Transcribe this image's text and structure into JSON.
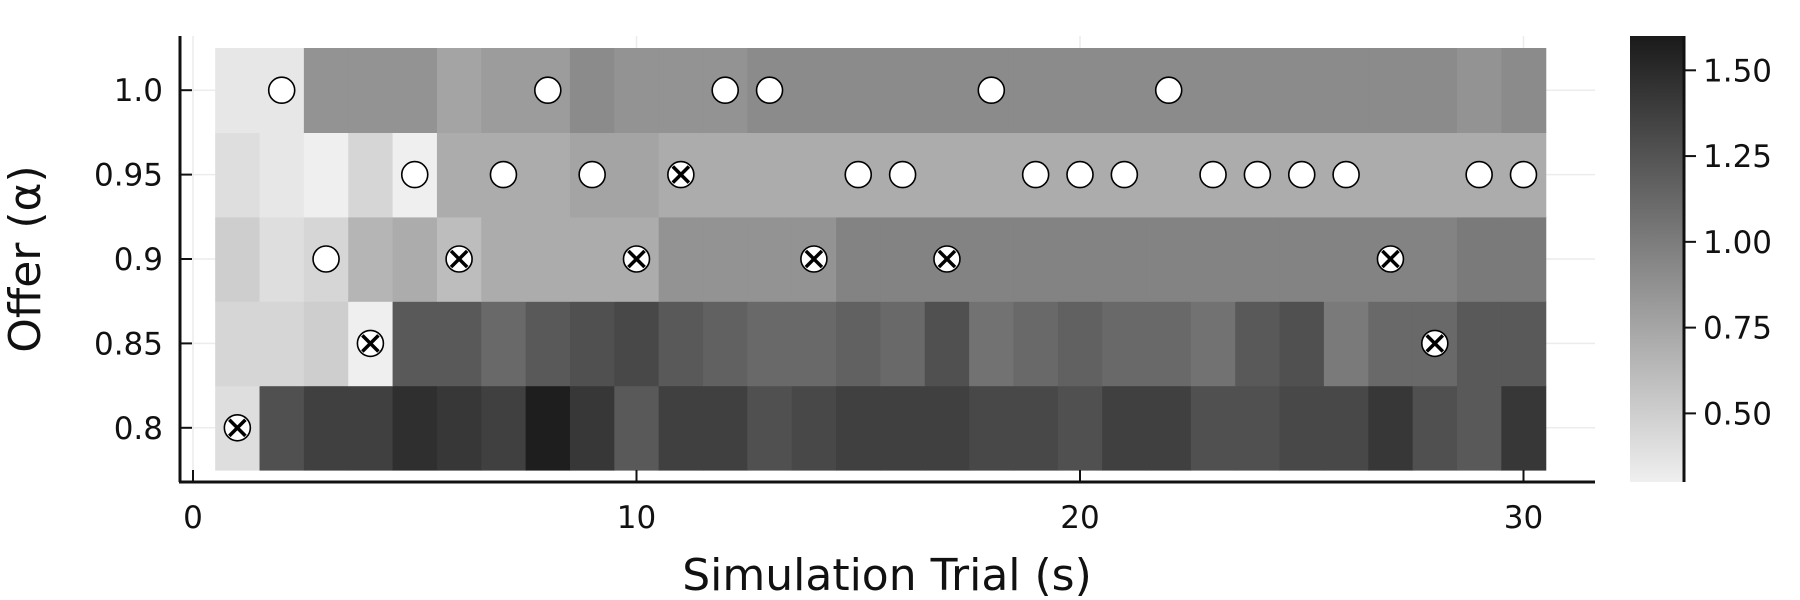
{
  "chart_data": {
    "type": "heatmap",
    "title": "",
    "xlabel": "Simulation Trial (s)",
    "ylabel": "Offer (α)",
    "x": [
      1,
      2,
      3,
      4,
      5,
      6,
      7,
      8,
      9,
      10,
      11,
      12,
      13,
      14,
      15,
      16,
      17,
      18,
      19,
      20,
      21,
      22,
      23,
      24,
      25,
      26,
      27,
      28,
      29,
      30
    ],
    "y_categories": [
      "0.8",
      "0.85",
      "0.9",
      "0.95",
      "1.0"
    ],
    "xlim": [
      0,
      31.4
    ],
    "x_ticks": [
      0,
      10,
      20,
      30
    ],
    "grid": true,
    "colormap": "grays (light = low, dark = high)",
    "color_range": [
      0.3,
      1.6
    ],
    "colorbar_ticks": [
      "0.50",
      "0.75",
      "1.00",
      "1.25",
      "1.50"
    ],
    "z": {
      "1.0": [
        0.35,
        0.35,
        0.85,
        0.85,
        0.85,
        0.75,
        0.8,
        0.8,
        0.9,
        0.85,
        0.85,
        0.85,
        0.9,
        0.9,
        0.9,
        0.9,
        0.9,
        0.9,
        0.9,
        0.9,
        0.9,
        0.9,
        0.9,
        0.9,
        0.9,
        0.9,
        0.9,
        0.9,
        0.85,
        0.9
      ],
      "0.95": [
        0.4,
        0.35,
        0.3,
        0.45,
        0.3,
        0.7,
        0.7,
        0.7,
        0.75,
        0.75,
        0.7,
        0.7,
        0.7,
        0.7,
        0.7,
        0.7,
        0.7,
        0.7,
        0.7,
        0.7,
        0.7,
        0.7,
        0.7,
        0.7,
        0.7,
        0.7,
        0.7,
        0.7,
        0.7,
        0.7
      ],
      "0.9": [
        0.5,
        0.4,
        0.45,
        0.65,
        0.7,
        0.6,
        0.7,
        0.7,
        0.7,
        0.7,
        0.85,
        0.85,
        0.85,
        0.85,
        0.95,
        0.95,
        0.95,
        0.95,
        0.95,
        0.95,
        0.95,
        0.95,
        0.95,
        0.95,
        0.95,
        0.95,
        0.95,
        0.95,
        1.0,
        1.0
      ],
      "0.85": [
        0.45,
        0.45,
        0.5,
        0.3,
        1.2,
        1.2,
        1.1,
        1.2,
        1.25,
        1.3,
        1.2,
        1.15,
        1.1,
        1.1,
        1.15,
        1.1,
        1.25,
        1.05,
        1.1,
        1.15,
        1.1,
        1.1,
        1.05,
        1.2,
        1.25,
        1.0,
        1.1,
        1.1,
        1.2,
        1.2
      ],
      "0.8": [
        0.4,
        1.25,
        1.35,
        1.35,
        1.45,
        1.4,
        1.35,
        1.55,
        1.4,
        1.2,
        1.35,
        1.35,
        1.25,
        1.3,
        1.35,
        1.35,
        1.35,
        1.3,
        1.3,
        1.25,
        1.35,
        1.35,
        1.25,
        1.25,
        1.3,
        1.3,
        1.4,
        1.25,
        1.2,
        1.4
      ]
    },
    "series": [
      {
        "marker": "open circle",
        "points": [
          {
            "x": 2,
            "y": "1.0"
          },
          {
            "x": 8,
            "y": "1.0"
          },
          {
            "x": 12,
            "y": "1.0"
          },
          {
            "x": 13,
            "y": "1.0"
          },
          {
            "x": 18,
            "y": "1.0"
          },
          {
            "x": 22,
            "y": "1.0"
          },
          {
            "x": 5,
            "y": "0.95"
          },
          {
            "x": 7,
            "y": "0.95"
          },
          {
            "x": 9,
            "y": "0.95"
          },
          {
            "x": 15,
            "y": "0.95"
          },
          {
            "x": 16,
            "y": "0.95"
          },
          {
            "x": 19,
            "y": "0.95"
          },
          {
            "x": 20,
            "y": "0.95"
          },
          {
            "x": 21,
            "y": "0.95"
          },
          {
            "x": 23,
            "y": "0.95"
          },
          {
            "x": 24,
            "y": "0.95"
          },
          {
            "x": 25,
            "y": "0.95"
          },
          {
            "x": 26,
            "y": "0.95"
          },
          {
            "x": 29,
            "y": "0.95"
          },
          {
            "x": 30,
            "y": "0.95"
          },
          {
            "x": 3,
            "y": "0.9"
          }
        ]
      },
      {
        "marker": "crossed circle",
        "points": [
          {
            "x": 11,
            "y": "0.95"
          },
          {
            "x": 6,
            "y": "0.9"
          },
          {
            "x": 10,
            "y": "0.9"
          },
          {
            "x": 14,
            "y": "0.9"
          },
          {
            "x": 17,
            "y": "0.9"
          },
          {
            "x": 27,
            "y": "0.9"
          },
          {
            "x": 4,
            "y": "0.85"
          },
          {
            "x": 28,
            "y": "0.85"
          },
          {
            "x": 1,
            "y": "0.8"
          }
        ]
      }
    ]
  }
}
